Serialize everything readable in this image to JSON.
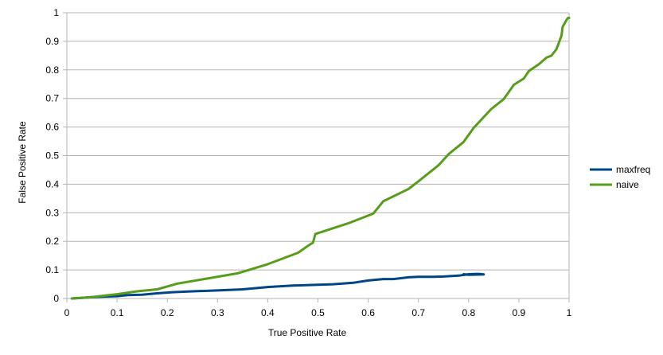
{
  "chart_data": {
    "type": "line",
    "title": "",
    "xlabel": "True Positive Rate",
    "ylabel": "False Positive Rate",
    "xlim": [
      0,
      1
    ],
    "ylim": [
      0,
      1
    ],
    "x_ticks": [
      "0",
      "0.1",
      "0.2",
      "0.3",
      "0.4",
      "0.5",
      "0.6",
      "0.7",
      "0.8",
      "0.9",
      "1"
    ],
    "y_ticks": [
      "0",
      "0.1",
      "0.2",
      "0.3",
      "0.4",
      "0.5",
      "0.6",
      "0.7",
      "0.8",
      "0.9",
      "1"
    ],
    "grid": "horizontal",
    "legend_position": "right",
    "series": [
      {
        "name": "maxfreq",
        "color": "#004586",
        "points": [
          [
            0.01,
            0.0
          ],
          [
            0.03,
            0.002
          ],
          [
            0.05,
            0.005
          ],
          [
            0.08,
            0.007
          ],
          [
            0.1,
            0.008
          ],
          [
            0.12,
            0.012
          ],
          [
            0.15,
            0.013
          ],
          [
            0.18,
            0.018
          ],
          [
            0.21,
            0.022
          ],
          [
            0.25,
            0.025
          ],
          [
            0.3,
            0.028
          ],
          [
            0.35,
            0.032
          ],
          [
            0.4,
            0.04
          ],
          [
            0.45,
            0.045
          ],
          [
            0.5,
            0.048
          ],
          [
            0.53,
            0.05
          ],
          [
            0.57,
            0.055
          ],
          [
            0.6,
            0.063
          ],
          [
            0.63,
            0.068
          ],
          [
            0.65,
            0.068
          ],
          [
            0.68,
            0.074
          ],
          [
            0.7,
            0.076
          ],
          [
            0.73,
            0.076
          ],
          [
            0.75,
            0.077
          ],
          [
            0.78,
            0.08
          ],
          [
            0.8,
            0.085
          ],
          [
            0.82,
            0.086
          ],
          [
            0.83,
            0.084
          ],
          [
            0.8,
            0.083
          ],
          [
            0.79,
            0.085
          ]
        ]
      },
      {
        "name": "naive",
        "color": "#579d1c",
        "points": [
          [
            0.01,
            0.0
          ],
          [
            0.05,
            0.005
          ],
          [
            0.1,
            0.015
          ],
          [
            0.14,
            0.025
          ],
          [
            0.18,
            0.032
          ],
          [
            0.22,
            0.052
          ],
          [
            0.28,
            0.07
          ],
          [
            0.34,
            0.088
          ],
          [
            0.4,
            0.12
          ],
          [
            0.46,
            0.16
          ],
          [
            0.485,
            0.19
          ],
          [
            0.49,
            0.195
          ],
          [
            0.495,
            0.226
          ],
          [
            0.52,
            0.24
          ],
          [
            0.56,
            0.263
          ],
          [
            0.61,
            0.297
          ],
          [
            0.63,
            0.34
          ],
          [
            0.68,
            0.383
          ],
          [
            0.7,
            0.41
          ],
          [
            0.74,
            0.466
          ],
          [
            0.76,
            0.505
          ],
          [
            0.79,
            0.548
          ],
          [
            0.81,
            0.597
          ],
          [
            0.845,
            0.663
          ],
          [
            0.87,
            0.698
          ],
          [
            0.89,
            0.748
          ],
          [
            0.91,
            0.77
          ],
          [
            0.92,
            0.796
          ],
          [
            0.94,
            0.82
          ],
          [
            0.955,
            0.843
          ],
          [
            0.965,
            0.85
          ],
          [
            0.975,
            0.873
          ],
          [
            0.985,
            0.92
          ],
          [
            0.987,
            0.95
          ],
          [
            0.995,
            0.975
          ],
          [
            0.998,
            0.982
          ],
          [
            1.0,
            0.982
          ]
        ]
      }
    ]
  }
}
